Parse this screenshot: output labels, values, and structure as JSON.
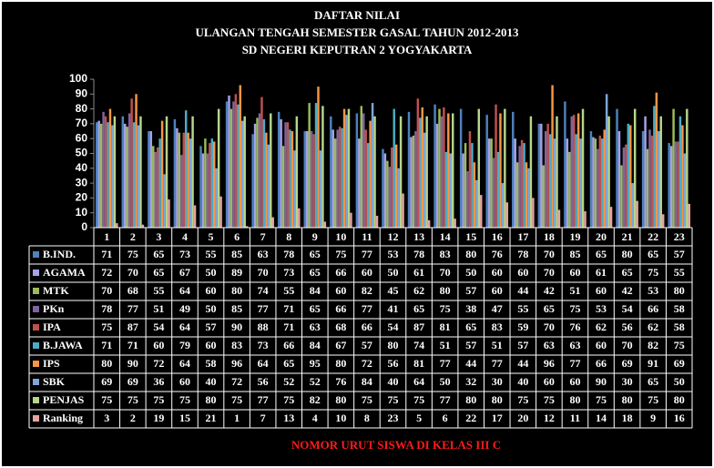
{
  "chart_data": {
    "type": "bar",
    "title": [
      "DAFTAR NILAI",
      "ULANGAN TENGAH SEMESTER GASAL TAHUN 2012-2013",
      "SD NEGERI KEPUTRAN 2 YOGYAKARTA"
    ],
    "x_label": "NOMOR URUT SISWA DI KELAS III C",
    "categories": [
      "1",
      "2",
      "3",
      "4",
      "5",
      "6",
      "7",
      "8",
      "9",
      "10",
      "11",
      "12",
      "13",
      "14",
      "15",
      "16",
      "17",
      "18",
      "19",
      "20",
      "21",
      "22",
      "23"
    ],
    "ylim": [
      0,
      100
    ],
    "yticks": [
      0,
      10,
      20,
      30,
      40,
      50,
      60,
      70,
      80,
      90,
      100
    ],
    "grid": false,
    "series": [
      {
        "name": "B.IND.",
        "color": "#4f81bd",
        "values": [
          71,
          75,
          65,
          73,
          55,
          85,
          63,
          78,
          65,
          75,
          77,
          53,
          78,
          83,
          80,
          76,
          78,
          70,
          85,
          65,
          80,
          65,
          57
        ]
      },
      {
        "name": "AGAMA",
        "color": "#a3a3e6",
        "values": [
          72,
          70,
          65,
          67,
          50,
          89,
          70,
          73,
          65,
          66,
          60,
          50,
          61,
          70,
          50,
          60,
          60,
          70,
          60,
          61,
          65,
          75,
          55
        ]
      },
      {
        "name": "MTK",
        "color": "#9bbb59",
        "values": [
          70,
          68,
          55,
          64,
          60,
          80,
          74,
          55,
          84,
          60,
          82,
          45,
          62,
          80,
          57,
          60,
          44,
          42,
          51,
          60,
          42,
          53,
          80
        ]
      },
      {
        "name": "PKn",
        "color": "#8064a2",
        "values": [
          78,
          77,
          51,
          49,
          50,
          85,
          77,
          71,
          65,
          66,
          77,
          41,
          65,
          75,
          38,
          47,
          55,
          65,
          75,
          53,
          54,
          66,
          58
        ]
      },
      {
        "name": "IPA",
        "color": "#c0504d",
        "values": [
          75,
          87,
          54,
          64,
          57,
          90,
          88,
          71,
          63,
          68,
          66,
          54,
          87,
          81,
          65,
          83,
          59,
          70,
          76,
          62,
          56,
          62,
          58
        ]
      },
      {
        "name": "B.JAWA",
        "color": "#4bacc6",
        "values": [
          71,
          71,
          60,
          79,
          60,
          83,
          73,
          66,
          84,
          67,
          57,
          80,
          74,
          51,
          57,
          51,
          57,
          63,
          63,
          60,
          70,
          82,
          75
        ]
      },
      {
        "name": "IPS",
        "color": "#f79646",
        "values": [
          80,
          90,
          72,
          64,
          58,
          96,
          64,
          65,
          95,
          80,
          72,
          56,
          81,
          77,
          44,
          77,
          44,
          96,
          77,
          66,
          69,
          91,
          69
        ]
      },
      {
        "name": "SBK",
        "color": "#7ea6d8",
        "values": [
          69,
          69,
          36,
          60,
          40,
          72,
          56,
          52,
          52,
          76,
          84,
          40,
          64,
          50,
          32,
          30,
          40,
          60,
          60,
          90,
          30,
          65,
          50
        ]
      },
      {
        "name": "PENJAS",
        "color": "#b6d68c",
        "values": [
          75,
          75,
          75,
          75,
          80,
          75,
          77,
          75,
          82,
          80,
          75,
          75,
          75,
          77,
          80,
          80,
          75,
          75,
          80,
          75,
          80,
          75,
          80
        ]
      },
      {
        "name": "Ranking",
        "color": "#e8a3a0",
        "values": [
          3,
          2,
          19,
          15,
          21,
          1,
          7,
          13,
          4,
          10,
          8,
          23,
          5,
          6,
          22,
          17,
          20,
          12,
          11,
          14,
          18,
          9,
          16
        ]
      }
    ]
  }
}
